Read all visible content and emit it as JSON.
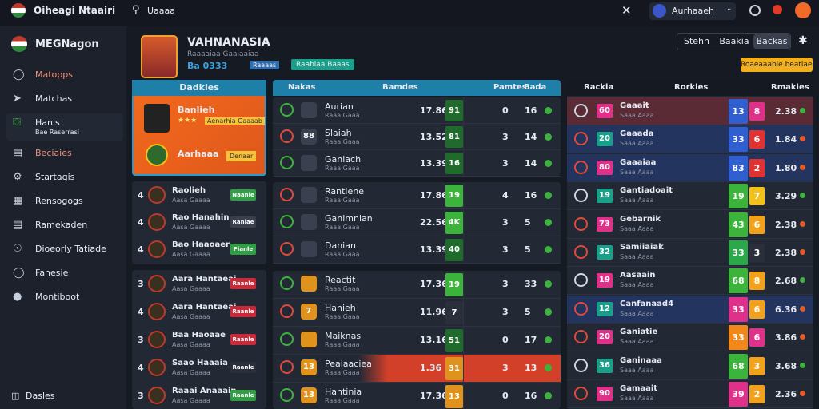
{
  "topbar": {
    "brand": "Oiheagi Ntaairi",
    "search": "Uaaaa",
    "user": "Aurhaaeh"
  },
  "sidebar": {
    "title": "MEGNagon",
    "items": [
      "Matopps",
      "Matchas",
      "Hanis",
      "Beciaies",
      "Startagis",
      "Rensogogs",
      "Ramekaden",
      "Dioeorly Tatiade",
      "Fahesie",
      "Montiboot"
    ],
    "active_sub": "Bae Raserrasi",
    "footer": "Dasles"
  },
  "header": {
    "name": "VAHNANASIA",
    "subtitle": "Raaaaiaa Gaaiaaiaa",
    "stats": "Ba 0333",
    "tag": "Raaaas",
    "badge": "Raabiaa Baaas",
    "tabs": [
      "Stehn",
      "Baakia",
      "Backas"
    ],
    "action": "Roaeaaabie beatiaes"
  },
  "left": {
    "title": "Dadkies",
    "featured": {
      "name": "Banlieh",
      "sub": "Aenarhia Gaaaab",
      "sub2": "Aarhaaa",
      "button": "Denaar"
    },
    "players": [
      {
        "rank": "4",
        "name": "Raolieh",
        "sub": "Aasa Gaaaa",
        "badge": "Naanle",
        "color": "#2f9e44"
      },
      {
        "rank": "4",
        "name": "Rao Hanahin",
        "sub": "Aasa Gaaaa",
        "badge": "Ranlae",
        "color": "#3a3f4e"
      },
      {
        "rank": "4",
        "name": "Bao Haaoaer",
        "sub": "Aasa Gaaaa",
        "badge": "Pianle",
        "color": "#2f9e44"
      },
      {
        "rank": "3",
        "name": "Aara Hantaeai",
        "sub": "Aasa Gaaaa",
        "badge": "Raanle",
        "color": "#c92a3a"
      },
      {
        "rank": "4",
        "name": "Aara Hantaeai",
        "sub": "Aasa Gaaaa",
        "badge": "Raanle",
        "color": "#c92a3a"
      },
      {
        "rank": "3",
        "name": "Baa Haoaae",
        "sub": "Aasa Gaaaa",
        "badge": "Raanle",
        "color": "#c92a3a"
      },
      {
        "rank": "4",
        "name": "Saao Haaaia",
        "sub": "Aasa Gaaaa",
        "badge": "Raanle",
        "color": "#2b2f3a"
      },
      {
        "rank": "3",
        "name": "Raaai Anaaain",
        "sub": "Aasa Gaaaa",
        "badge": "Raanle",
        "color": "#2f9e44"
      }
    ]
  },
  "matches": {
    "columns": [
      "Nakas",
      "Bamdes",
      "Pamtes",
      "Bada"
    ],
    "rows": [
      {
        "code": "",
        "team": "Aurian",
        "sub": "Raaa Gaaa",
        "odds": "17.86",
        "stat": "91",
        "a": "0",
        "b": "16",
        "color": "#1f6b2c"
      },
      {
        "code": "88",
        "team": "Slaiah",
        "sub": "Raaa Gaaa",
        "odds": "13.52",
        "stat": "81",
        "a": "3",
        "b": "14",
        "color": "#1f6b2c"
      },
      {
        "code": "",
        "team": "Ganiach",
        "sub": "Raaa Gaaa",
        "odds": "13.39",
        "stat": "16",
        "a": "3",
        "b": "14",
        "color": "#1f6b2c"
      },
      {
        "code": "",
        "team": "Rantiene",
        "sub": "Raaa Gaaa",
        "odds": "17.86",
        "stat": "19",
        "a": "4",
        "b": "16",
        "color": "#3cb43c"
      },
      {
        "code": "",
        "team": "Ganimnian",
        "sub": "Raaa Gaaa",
        "odds": "22.56",
        "stat": "4K",
        "a": "3",
        "b": "5",
        "color": "#3cb43c"
      },
      {
        "code": "",
        "team": "Danian",
        "sub": "Raaa Gaaa",
        "odds": "13.39",
        "stat": "40",
        "a": "3",
        "b": "5",
        "color": "#1f6b2c"
      },
      {
        "code": "",
        "team": "Reactit",
        "sub": "Raaa Gaaa",
        "odds": "17.36",
        "stat": "19",
        "a": "3",
        "b": "33",
        "color": "#3cb43c"
      },
      {
        "code": "7",
        "team": "Hanieh",
        "sub": "Raaa Gaaa",
        "odds": "11.96",
        "stat": "7",
        "a": "3",
        "b": "5",
        "color": "#2a2f3b"
      },
      {
        "code": "",
        "team": "Maiknas",
        "sub": "Raaa Gaaa",
        "odds": "13.16",
        "stat": "51",
        "a": "0",
        "b": "17",
        "color": "#1f6b2c"
      },
      {
        "code": "13",
        "team": "Peaiaaciea",
        "sub": "Raaa Gaaa",
        "odds": "1.36",
        "stat": "31",
        "a": "3",
        "b": "13",
        "color": "#e0931c"
      },
      {
        "code": "13",
        "team": "Hantinia",
        "sub": "Raaa Gaaa",
        "odds": "17.36",
        "stat": "13",
        "a": "0",
        "b": "16",
        "color": "#e0931c"
      }
    ]
  },
  "ranking": {
    "columns": [
      "Rackia",
      "Rorkies",
      "Rmakies"
    ],
    "rows": [
      {
        "code": "60",
        "team": "Gaaait",
        "sub": "Saaa Aaaa",
        "r1": "13",
        "r2": "8",
        "value": "2.38",
        "c1": "#2f5fd0",
        "c2": "#e0318a"
      },
      {
        "code": "20",
        "team": "Gaaada",
        "sub": "Saaa Aaaa",
        "r1": "33",
        "r2": "6",
        "value": "1.84",
        "c1": "#2f5fd0",
        "c2": "#e03232"
      },
      {
        "code": "80",
        "team": "Gaaaiaa",
        "sub": "Saaa Aaaa",
        "r1": "83",
        "r2": "2",
        "value": "1.80",
        "c1": "#2f5fd0",
        "c2": "#e03232"
      },
      {
        "code": "19",
        "team": "Gantiadoait",
        "sub": "Saaa Aaaa",
        "r1": "19",
        "r2": "7",
        "value": "3.29",
        "c1": "#3cb43c",
        "c2": "#f2c21a"
      },
      {
        "code": "73",
        "team": "Gebarnik",
        "sub": "Saaa Aaaa",
        "r1": "43",
        "r2": "6",
        "value": "2.38",
        "c1": "#3cb43c",
        "c2": "#f2a21a"
      },
      {
        "code": "32",
        "team": "Samiiaiak",
        "sub": "Saaa Aaaa",
        "r1": "33",
        "r2": "3",
        "value": "2.38",
        "c1": "#2aa84a",
        "c2": "#2a2f3b"
      },
      {
        "code": "19",
        "team": "Aasaain",
        "sub": "Saaa Aaaa",
        "r1": "68",
        "r2": "8",
        "value": "2.68",
        "c1": "#3cb43c",
        "c2": "#f2a21a"
      },
      {
        "code": "12",
        "team": "Canfanaad4",
        "sub": "Saaa Aaaa",
        "r1": "33",
        "r2": "6",
        "value": "6.36",
        "c1": "#e0318a",
        "c2": "#f2a21a"
      },
      {
        "code": "20",
        "team": "Ganiatie",
        "sub": "Saaa Aaaa",
        "r1": "33",
        "r2": "6",
        "value": "3.86",
        "c1": "#f2871a",
        "c2": "#e0318a"
      },
      {
        "code": "36",
        "team": "Ganinaaa",
        "sub": "Saaa Aaaa",
        "r1": "68",
        "r2": "3",
        "value": "3.68",
        "c1": "#3cb43c",
        "c2": "#f2a21a"
      },
      {
        "code": "90",
        "team": "Gamaait",
        "sub": "Saaa Aaaa",
        "r1": "39",
        "r2": "2",
        "value": "2.36",
        "c1": "#e0318a",
        "c2": "#f2a21a"
      }
    ]
  }
}
